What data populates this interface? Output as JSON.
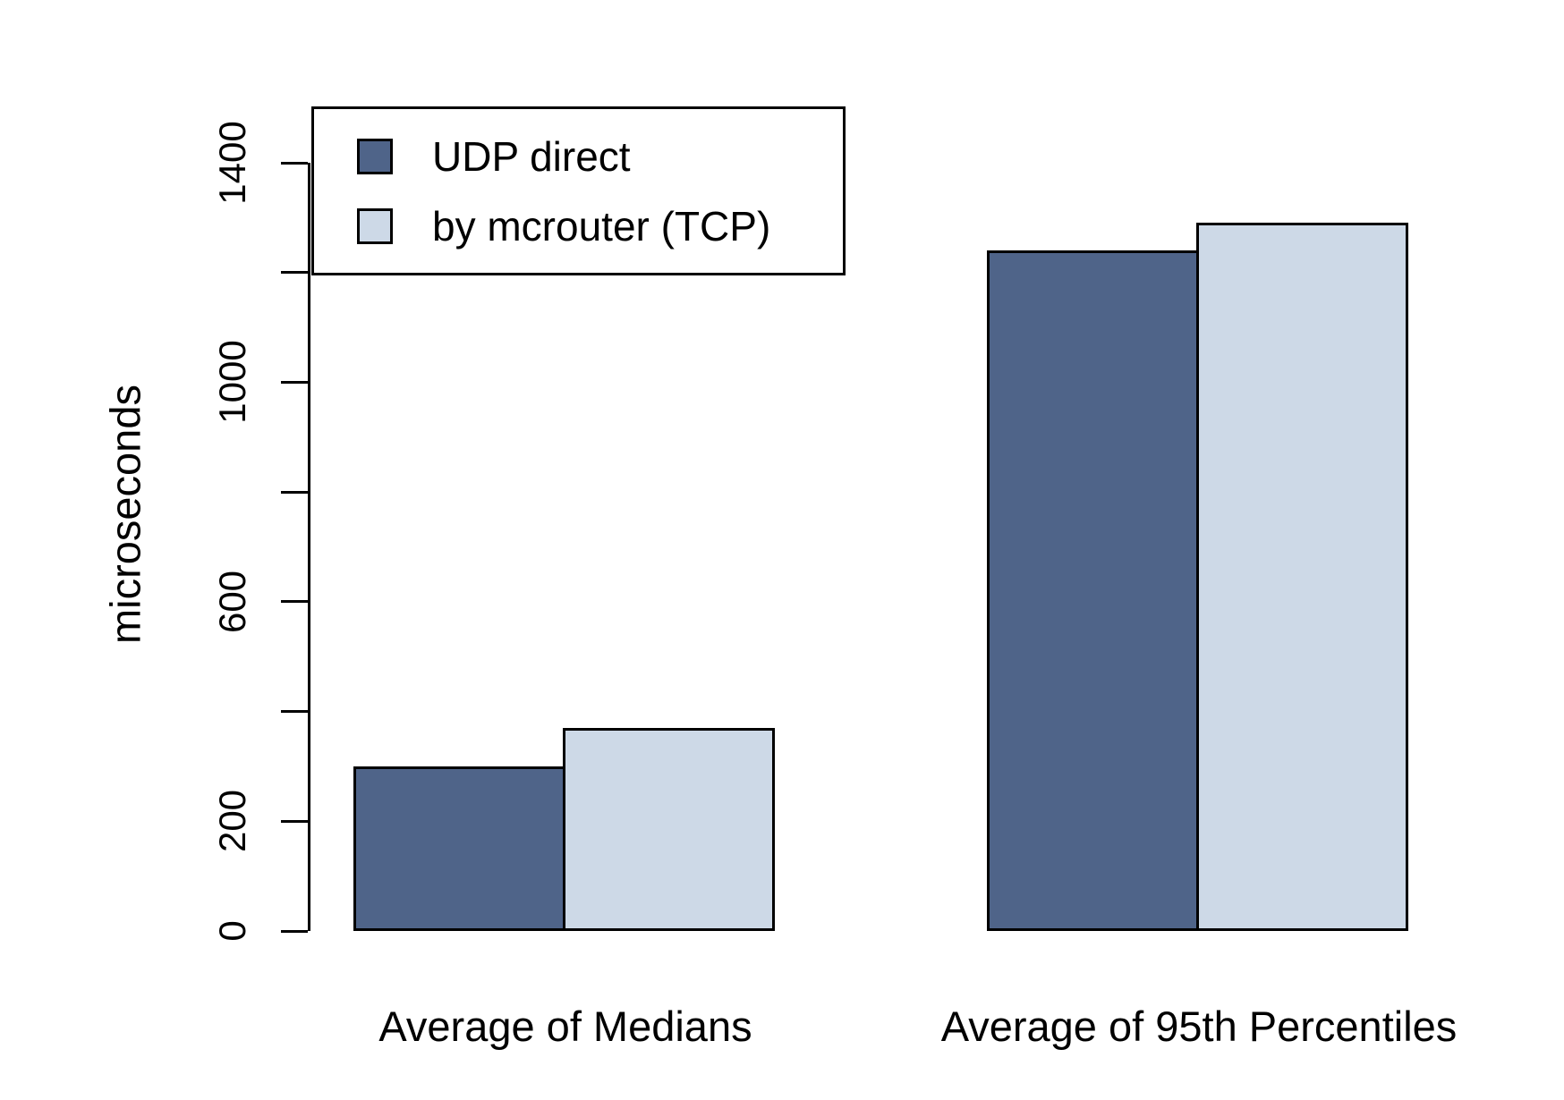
{
  "chart_data": {
    "type": "bar",
    "title": "",
    "ylabel": "microseconds",
    "xlabel": "",
    "categories": [
      "Average of Medians",
      "Average of 95th Percentiles"
    ],
    "series": [
      {
        "name": "UDP direct",
        "color": "#4f6489",
        "values": [
          300,
          1240
        ]
      },
      {
        "name": "by mcrouter (TCP)",
        "color": "#cdd9e7",
        "values": [
          370,
          1290
        ]
      }
    ],
    "ylim": [
      0,
      1400
    ],
    "yticks": [
      0,
      200,
      400,
      600,
      800,
      1000,
      1200,
      1400
    ],
    "ytick_labels_shown": [
      0,
      200,
      600,
      1000,
      1400
    ],
    "grid": false,
    "legend_position": "top-left",
    "bar_border_color": "#000000",
    "axis_color": "#000000",
    "background": "#ffffff"
  }
}
